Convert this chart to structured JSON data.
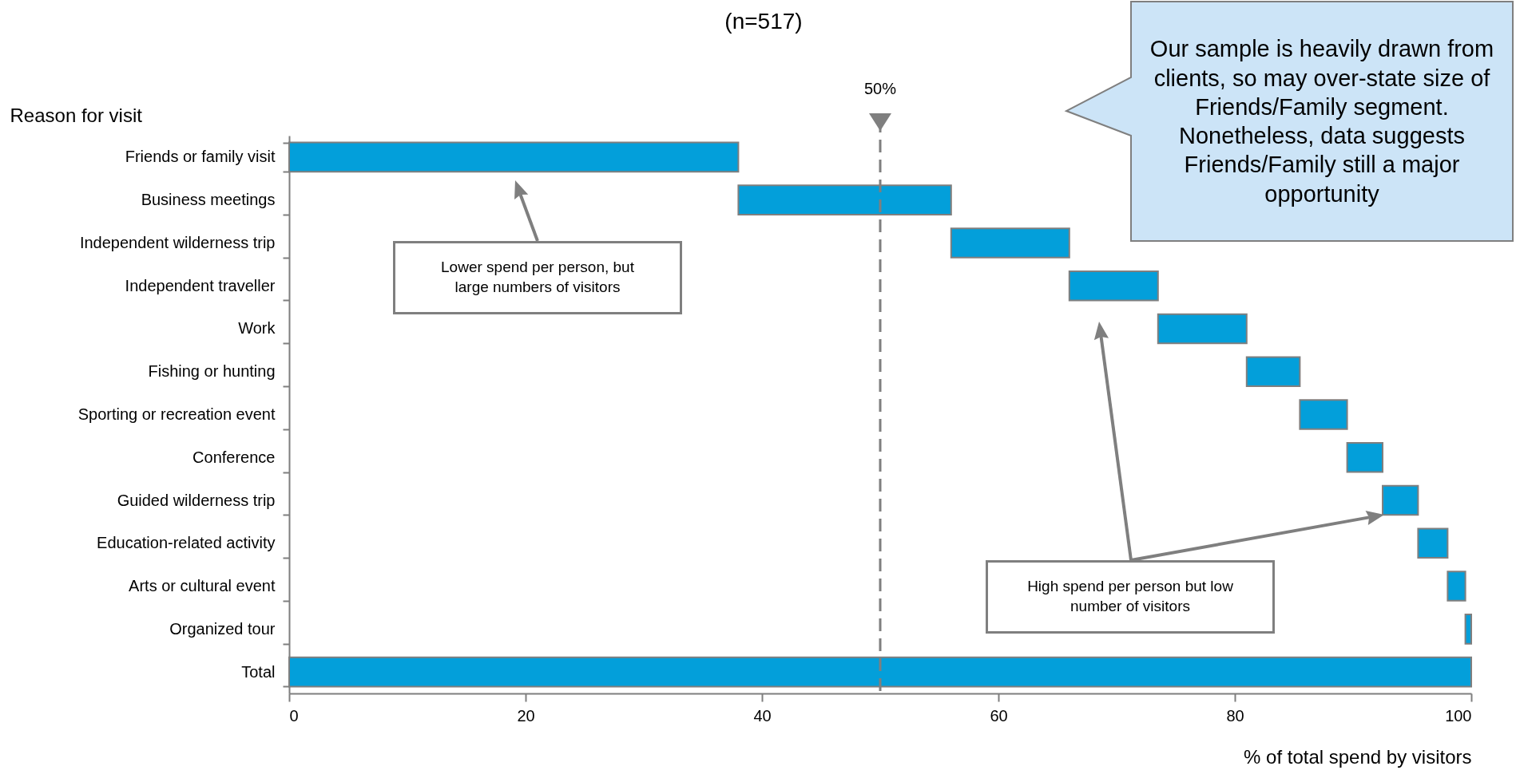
{
  "chart_data": {
    "type": "bar",
    "orientation": "horizontal",
    "title": "(n=517)",
    "ylabel": "Reason for visit",
    "xlabel": "% of total spend by visitors",
    "categories": [
      "Friends or family visit",
      "Business meetings",
      "Independent wilderness trip",
      "Independent traveller",
      "Work",
      "Fishing or hunting",
      "Sporting or recreation event",
      "Conference",
      "Guided wilderness trip",
      "Education-related activity",
      "Arts or cultural event",
      "Organized tour",
      "Total"
    ],
    "values": [
      38,
      18,
      10,
      7.5,
      7.5,
      4.5,
      4,
      3,
      3,
      2.5,
      1.5,
      0.5,
      100
    ],
    "base": [
      0,
      38,
      56,
      66,
      73.5,
      81,
      85.5,
      89.5,
      92.5,
      95.5,
      98,
      99.5,
      0
    ],
    "color": "#039fda",
    "xlim": [
      0,
      100
    ],
    "xticks": [
      0,
      20,
      40,
      60,
      80,
      100
    ],
    "grid": false,
    "ref_lines": [
      {
        "axis": "x",
        "value": 50,
        "label": "50%",
        "color": "#7f7f7f",
        "line_style": "dashed"
      }
    ],
    "annotations": [
      "Lower spend per person, but large numbers of visitors",
      "High spend per person but low number of visitors",
      "Our sample is heavily drawn from clients, so may over-state size of Friends/Family segment. Nonetheless, data suggests Friends/Family still a major opportunity"
    ]
  }
}
